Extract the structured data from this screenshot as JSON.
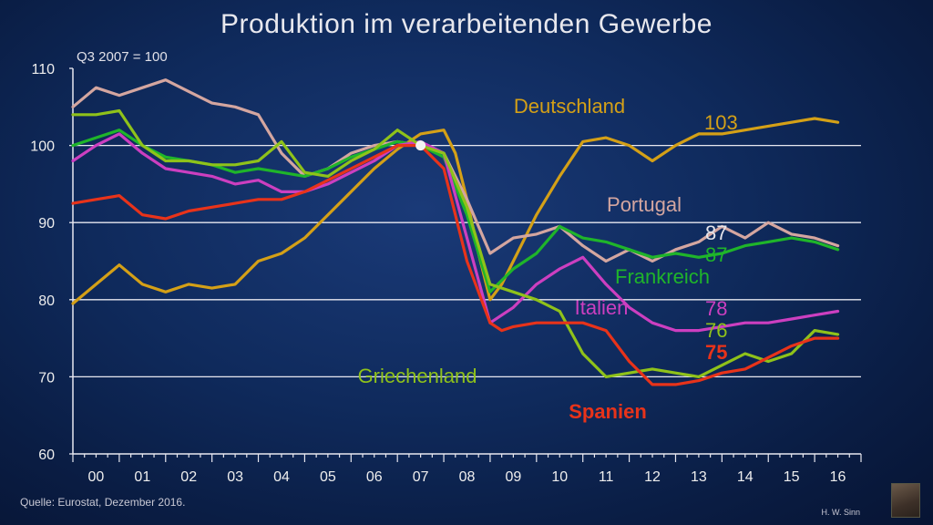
{
  "header": {
    "title": "Produktion im verarbeitenden Gewerbe",
    "index_note": "Q3 2007 = 100"
  },
  "footer": {
    "source": "Quelle: Eurostat, Dezember 2016.",
    "author": "H. W. Sinn"
  },
  "chart_data": {
    "type": "line",
    "title": "Produktion im verarbeitenden Gewerbe",
    "ylabel": "Q3 2007 = 100",
    "xlabel": "",
    "xlim": [
      2000,
      2017
    ],
    "ylim": [
      60,
      110
    ],
    "yticks": [
      "110",
      "100",
      "90",
      "80",
      "70",
      "60"
    ],
    "ytick_values": [
      110,
      100,
      90,
      80,
      70,
      60
    ],
    "xticks": [
      "00",
      "01",
      "02",
      "03",
      "04",
      "05",
      "06",
      "07",
      "08",
      "09",
      "10",
      "11",
      "12",
      "13",
      "14",
      "15",
      "16"
    ],
    "gridlines": [
      100,
      90,
      80,
      70
    ],
    "series": [
      {
        "name": "Deutschland",
        "color": "#d4a017",
        "label_bold": false,
        "end_value": "103",
        "x": [
          2000,
          2000.5,
          2001,
          2001.5,
          2002,
          2002.5,
          2003,
          2003.5,
          2004,
          2004.5,
          2005,
          2005.5,
          2006,
          2006.5,
          2007,
          2007.5,
          2008,
          2008.25,
          2008.5,
          2008.75,
          2009,
          2009.25,
          2009.5,
          2010,
          2010.5,
          2011,
          2011.5,
          2012,
          2012.5,
          2013,
          2013.5,
          2014,
          2014.5,
          2015,
          2015.5,
          2016,
          2016.5
        ],
        "values": [
          79.5,
          82,
          84.5,
          82,
          81,
          82,
          81.5,
          82,
          85,
          86,
          88,
          91,
          94,
          97,
          99.5,
          101.5,
          102,
          99,
          93,
          86,
          80,
          82,
          85,
          91,
          96,
          100.5,
          101,
          100,
          98,
          100,
          101.5,
          101.5,
          102,
          102.5,
          103,
          103.5,
          103
        ]
      },
      {
        "name": "Portugal",
        "color": "#d4a6a0",
        "label_bold": false,
        "end_value": "87",
        "x": [
          2000,
          2000.5,
          2001,
          2001.5,
          2002,
          2002.5,
          2003,
          2003.5,
          2004,
          2004.5,
          2005,
          2005.5,
          2006,
          2006.5,
          2007,
          2007.5,
          2008,
          2008.5,
          2009,
          2009.5,
          2010,
          2010.5,
          2011,
          2011.5,
          2012,
          2012.5,
          2013,
          2013.5,
          2014,
          2014.5,
          2015,
          2015.5,
          2016,
          2016.5
        ],
        "values": [
          105,
          107.5,
          106.5,
          107.5,
          108.5,
          107,
          105.5,
          105,
          104,
          99,
          96,
          97,
          99,
          100,
          100.5,
          100,
          99,
          93,
          86,
          88,
          88.5,
          89.5,
          87,
          85,
          86.5,
          85,
          86.5,
          87.5,
          89.5,
          88,
          90,
          88.5,
          88,
          87
        ]
      },
      {
        "name": "Frankreich",
        "color": "#1fb52a",
        "label_bold": false,
        "end_value": "87",
        "x": [
          2000,
          2000.5,
          2001,
          2001.5,
          2002,
          2002.5,
          2003,
          2003.5,
          2004,
          2004.5,
          2005,
          2005.5,
          2006,
          2006.5,
          2007,
          2007.5,
          2008,
          2008.5,
          2009,
          2009.5,
          2010,
          2010.5,
          2011,
          2011.5,
          2012,
          2012.5,
          2013,
          2013.5,
          2014,
          2014.5,
          2015,
          2015.5,
          2016,
          2016.5
        ],
        "values": [
          100,
          101,
          102,
          100,
          98.5,
          98,
          97.5,
          96.5,
          97,
          96.5,
          96,
          97,
          98.5,
          99.5,
          100.5,
          100,
          98.5,
          91,
          81,
          84,
          86,
          89.5,
          88,
          87.5,
          86.5,
          85.5,
          86,
          85.5,
          86,
          87,
          87.5,
          88,
          87.5,
          86.5
        ]
      },
      {
        "name": "Italien",
        "color": "#cc3fc0",
        "label_bold": false,
        "end_value": "78",
        "x": [
          2000,
          2000.5,
          2001,
          2001.5,
          2002,
          2002.5,
          2003,
          2003.5,
          2004,
          2004.5,
          2005,
          2005.5,
          2006,
          2006.5,
          2007,
          2007.5,
          2008,
          2008.5,
          2009,
          2009.5,
          2010,
          2010.5,
          2011,
          2011.5,
          2012,
          2012.5,
          2013,
          2013.5,
          2014,
          2014.5,
          2015,
          2015.5,
          2016,
          2016.5
        ],
        "values": [
          98,
          100,
          101.5,
          99,
          97,
          96.5,
          96,
          95,
          95.5,
          94,
          94,
          95,
          96.5,
          98,
          100,
          100.5,
          99,
          88,
          77,
          79,
          82,
          84,
          85.5,
          82,
          79,
          77,
          76,
          76,
          76.5,
          77,
          77,
          77.5,
          78,
          78.5
        ]
      },
      {
        "name": "Griechenland",
        "color": "#8fc21a",
        "label_bold": false,
        "end_value": "76",
        "x": [
          2000,
          2000.5,
          2001,
          2001.5,
          2002,
          2002.5,
          2003,
          2003.5,
          2004,
          2004.5,
          2005,
          2005.5,
          2006,
          2006.5,
          2007,
          2007.5,
          2008,
          2008.5,
          2009,
          2009.5,
          2010,
          2010.5,
          2011,
          2011.5,
          2012,
          2012.5,
          2013,
          2013.5,
          2014,
          2014.5,
          2015,
          2015.5,
          2016,
          2016.5
        ],
        "values": [
          104,
          104,
          104.5,
          100,
          98,
          98,
          97.5,
          97.5,
          98,
          100.5,
          96.5,
          96,
          98,
          99.5,
          102,
          100,
          99,
          92,
          82,
          81,
          80,
          78.5,
          73,
          70,
          70.5,
          71,
          70.5,
          70,
          71.5,
          73,
          72,
          73,
          76,
          75.5
        ]
      },
      {
        "name": "Spanien",
        "color": "#e8331a",
        "label_bold": true,
        "end_value": "75",
        "x": [
          2000,
          2000.5,
          2001,
          2001.5,
          2002,
          2002.5,
          2003,
          2003.5,
          2004,
          2004.5,
          2005,
          2005.5,
          2006,
          2006.5,
          2007,
          2007.5,
          2008,
          2008.5,
          2009,
          2009.25,
          2009.5,
          2010,
          2010.5,
          2011,
          2011.5,
          2012,
          2012.5,
          2013,
          2013.5,
          2014,
          2014.5,
          2015,
          2015.5,
          2016,
          2016.5
        ],
        "values": [
          92.5,
          93,
          93.5,
          91,
          90.5,
          91.5,
          92,
          92.5,
          93,
          93,
          94,
          95.5,
          97,
          98.5,
          100,
          100,
          97,
          85,
          77,
          76,
          76.5,
          77,
          77,
          77,
          76,
          72,
          69,
          69,
          69.5,
          70.5,
          71,
          72.5,
          74,
          75,
          75
        ]
      }
    ],
    "marker": {
      "x": 2007.5,
      "y": 100
    }
  }
}
